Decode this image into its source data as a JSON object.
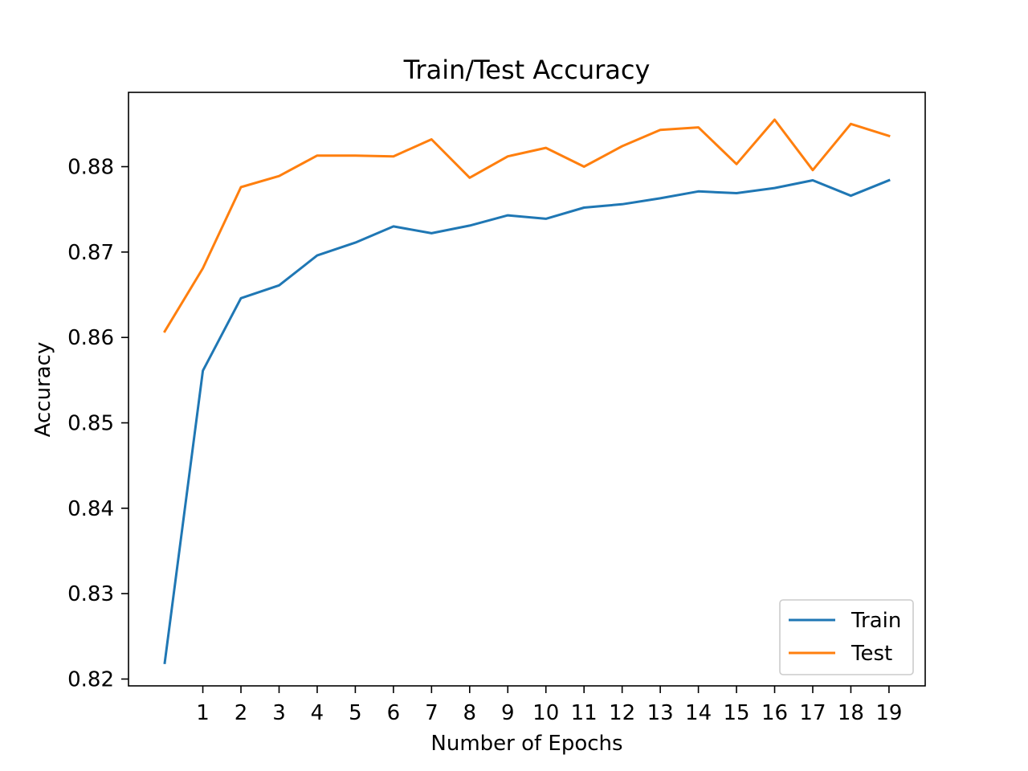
{
  "chart_data": {
    "type": "line",
    "title": "Train/Test Accuracy",
    "xlabel": "Number of Epochs",
    "ylabel": "Accuracy",
    "x": [
      0,
      1,
      2,
      3,
      4,
      5,
      6,
      7,
      8,
      9,
      10,
      11,
      12,
      13,
      14,
      15,
      16,
      17,
      18,
      19
    ],
    "xticks": [
      1,
      2,
      3,
      4,
      5,
      6,
      7,
      8,
      9,
      10,
      11,
      12,
      13,
      14,
      15,
      16,
      17,
      18,
      19
    ],
    "xlim": [
      -0.95,
      19.95
    ],
    "yticks": [
      0.82,
      0.83,
      0.84,
      0.85,
      0.86,
      0.87,
      0.88
    ],
    "yticklabels": [
      "0.82",
      "0.83",
      "0.84",
      "0.85",
      "0.86",
      "0.87",
      "0.88"
    ],
    "ylim": [
      0.8192,
      0.8887
    ],
    "grid": false,
    "legend_position": "lower-right",
    "series": [
      {
        "name": "Train",
        "color": "#1f77b4",
        "values": [
          0.8219,
          0.8561,
          0.8646,
          0.8661,
          0.8696,
          0.8711,
          0.873,
          0.8722,
          0.8731,
          0.8743,
          0.8739,
          0.8752,
          0.8756,
          0.8763,
          0.8771,
          0.8769,
          0.8775,
          0.8784,
          0.8766,
          0.8784
        ]
      },
      {
        "name": "Test",
        "color": "#ff7f0e",
        "values": [
          0.8607,
          0.8681,
          0.8776,
          0.8789,
          0.8813,
          0.8813,
          0.8812,
          0.8832,
          0.8787,
          0.8812,
          0.8822,
          0.88,
          0.8824,
          0.8843,
          0.8846,
          0.8803,
          0.8855,
          0.8796,
          0.885,
          0.8836
        ]
      }
    ]
  }
}
